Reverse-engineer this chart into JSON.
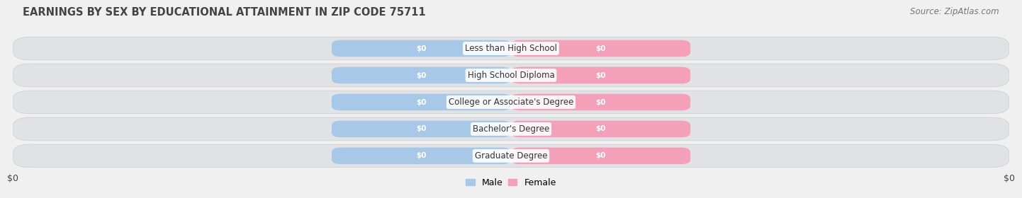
{
  "title": "EARNINGS BY SEX BY EDUCATIONAL ATTAINMENT IN ZIP CODE 75711",
  "source": "Source: ZipAtlas.com",
  "categories": [
    "Less than High School",
    "High School Diploma",
    "College or Associate's Degree",
    "Bachelor's Degree",
    "Graduate Degree"
  ],
  "male_color": "#a8c8e8",
  "female_color": "#f4a0b8",
  "male_label": "Male",
  "female_label": "Female",
  "bar_label": "$0",
  "x_tick_left": "$0",
  "x_tick_right": "$0",
  "xlim": [
    -10,
    10
  ],
  "bg_color": "#f0f0f0",
  "row_bg_color": "#e0e2e6",
  "row_alt_color": "#e8eaed",
  "title_fontsize": 10.5,
  "source_fontsize": 8.5,
  "bar_label_fontsize": 7.5,
  "cat_label_fontsize": 8.5,
  "legend_fontsize": 9,
  "tick_fontsize": 9
}
